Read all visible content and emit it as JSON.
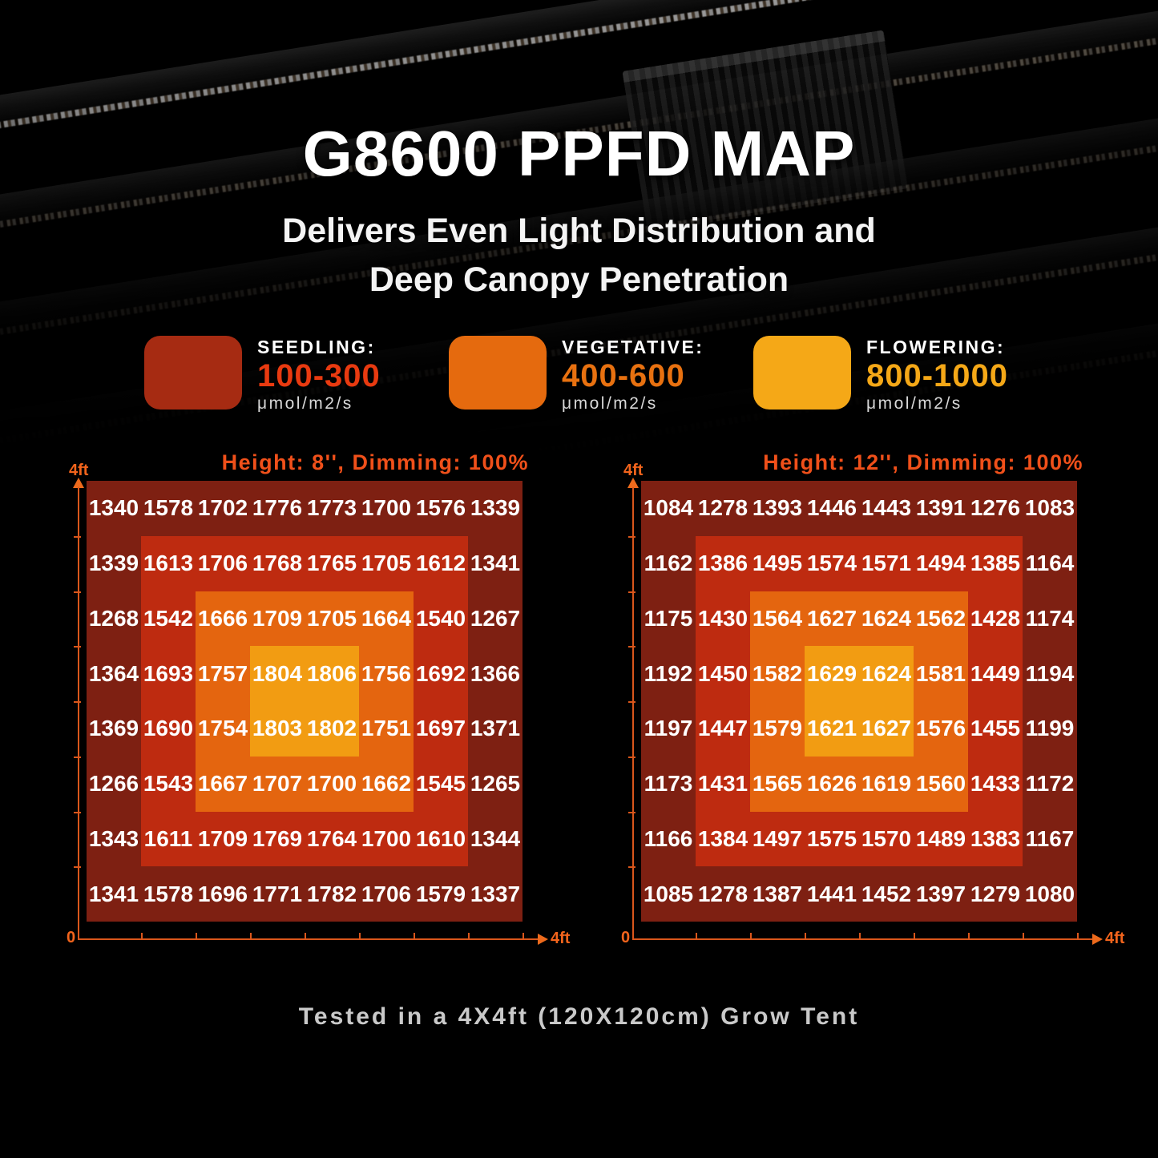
{
  "page": {
    "title": "G8600 PPFD MAP",
    "subtitle_line1": "Delivers Even Light Distribution and",
    "subtitle_line2": "Deep Canopy Penetration",
    "footer": "Tested in a 4X4ft (120X120cm) Grow Tent"
  },
  "colors": {
    "background": "#000000",
    "axis_line": "#d9561b",
    "axis_label": "#f2641c",
    "chart_title": "#f0501a",
    "cell_text": "#ffffff"
  },
  "legend": {
    "items": [
      {
        "name": "seedling",
        "label": "SEEDLING:",
        "range": "100-300",
        "unit": "μmol/m2/s",
        "swatch_color": "#a62b12",
        "range_color": "#e93a10"
      },
      {
        "name": "vegetative",
        "label": "VEGETATIVE:",
        "range": "400-600",
        "unit": "μmol/m2/s",
        "swatch_color": "#e56a0e",
        "range_color": "#e87110"
      },
      {
        "name": "flowering",
        "label": "FLOWERING:",
        "range": "800-1000",
        "unit": "μmol/m2/s",
        "swatch_color": "#f5a817",
        "range_color": "#f5a817"
      }
    ]
  },
  "chart_data": [
    {
      "type": "heatmap",
      "title": "Height: 8'', Dimming: 100%",
      "y_axis_top_label": "4ft",
      "x_axis_origin_label": "0",
      "x_axis_end_label": "4ft",
      "rows": 8,
      "cols": 8,
      "ring_colors_outer_to_center": [
        "#7e2012",
        "#be2b10",
        "#e4650f",
        "#f29c12"
      ],
      "values": [
        [
          1340,
          1578,
          1702,
          1776,
          1773,
          1700,
          1576,
          1339
        ],
        [
          1339,
          1613,
          1706,
          1768,
          1765,
          1705,
          1612,
          1341
        ],
        [
          1268,
          1542,
          1666,
          1709,
          1705,
          1664,
          1540,
          1267
        ],
        [
          1364,
          1693,
          1757,
          1804,
          1806,
          1756,
          1692,
          1366
        ],
        [
          1369,
          1690,
          1754,
          1803,
          1802,
          1751,
          1697,
          1371
        ],
        [
          1266,
          1543,
          1667,
          1707,
          1700,
          1662,
          1545,
          1265
        ],
        [
          1343,
          1611,
          1709,
          1769,
          1764,
          1700,
          1610,
          1344
        ],
        [
          1341,
          1578,
          1696,
          1771,
          1782,
          1706,
          1579,
          1337
        ]
      ]
    },
    {
      "type": "heatmap",
      "title": "Height: 12'', Dimming: 100%",
      "y_axis_top_label": "4ft",
      "x_axis_origin_label": "0",
      "x_axis_end_label": "4ft",
      "rows": 8,
      "cols": 8,
      "ring_colors_outer_to_center": [
        "#7e2012",
        "#be2b10",
        "#e4650f",
        "#f29c12"
      ],
      "values": [
        [
          1084,
          1278,
          1393,
          1446,
          1443,
          1391,
          1276,
          1083
        ],
        [
          1162,
          1386,
          1495,
          1574,
          1571,
          1494,
          1385,
          1164
        ],
        [
          1175,
          1430,
          1564,
          1627,
          1624,
          1562,
          1428,
          1174
        ],
        [
          1192,
          1450,
          1582,
          1629,
          1624,
          1581,
          1449,
          1194
        ],
        [
          1197,
          1447,
          1579,
          1621,
          1627,
          1576,
          1455,
          1199
        ],
        [
          1173,
          1431,
          1565,
          1626,
          1619,
          1560,
          1433,
          1172
        ],
        [
          1166,
          1384,
          1497,
          1575,
          1570,
          1489,
          1383,
          1167
        ],
        [
          1085,
          1278,
          1387,
          1441,
          1452,
          1397,
          1279,
          1080
        ]
      ]
    }
  ]
}
